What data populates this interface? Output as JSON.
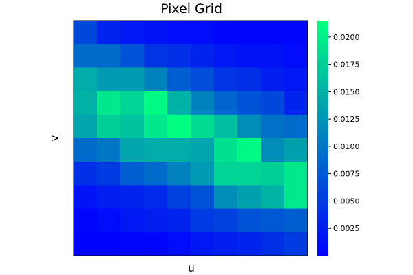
{
  "chart_data": {
    "type": "heatmap",
    "title": "Pixel Grid",
    "xlabel": "u",
    "ylabel": "v",
    "colormap": "winter",
    "color_min": "#0000ff",
    "color_max": "#00ff80",
    "clim": [
      0.0,
      0.0215
    ],
    "colorbar_ticks": [
      {
        "value": 0.0025,
        "label": "0.0025"
      },
      {
        "value": 0.005,
        "label": "0.0050"
      },
      {
        "value": 0.0075,
        "label": "0.0075"
      },
      {
        "value": 0.01,
        "label": "0.0100"
      },
      {
        "value": 0.0125,
        "label": "0.0125"
      },
      {
        "value": 0.015,
        "label": "0.0150"
      },
      {
        "value": 0.0175,
        "label": "0.0175"
      },
      {
        "value": 0.02,
        "label": "0.0200"
      }
    ],
    "grid": false,
    "rows_top_to_bottom": [
      [
        0.006,
        0.003,
        0.002,
        0.0015,
        0.001,
        0.001,
        0.0005,
        0.0005,
        0.0005,
        0.0005
      ],
      [
        0.009,
        0.009,
        0.007,
        0.0045,
        0.004,
        0.003,
        0.002,
        0.0015,
        0.0015,
        0.001
      ],
      [
        0.0145,
        0.013,
        0.013,
        0.011,
        0.008,
        0.0065,
        0.0045,
        0.004,
        0.0025,
        0.002
      ],
      [
        0.015,
        0.0195,
        0.018,
        0.021,
        0.015,
        0.011,
        0.0085,
        0.007,
        0.006,
        0.003
      ],
      [
        0.014,
        0.0175,
        0.0165,
        0.0195,
        0.0215,
        0.0185,
        0.016,
        0.012,
        0.0095,
        0.009
      ],
      [
        0.009,
        0.01,
        0.014,
        0.0145,
        0.0145,
        0.014,
        0.019,
        0.021,
        0.012,
        0.0135
      ],
      [
        0.004,
        0.005,
        0.008,
        0.009,
        0.011,
        0.013,
        0.018,
        0.018,
        0.0175,
        0.0195
      ],
      [
        0.0015,
        0.0025,
        0.003,
        0.0035,
        0.0055,
        0.007,
        0.012,
        0.0135,
        0.015,
        0.0195
      ],
      [
        0.0005,
        0.001,
        0.002,
        0.0025,
        0.003,
        0.005,
        0.0055,
        0.007,
        0.0075,
        0.008
      ],
      [
        0.0003,
        0.0003,
        0.0005,
        0.0005,
        0.001,
        0.002,
        0.0025,
        0.003,
        0.004,
        0.005
      ]
    ]
  }
}
